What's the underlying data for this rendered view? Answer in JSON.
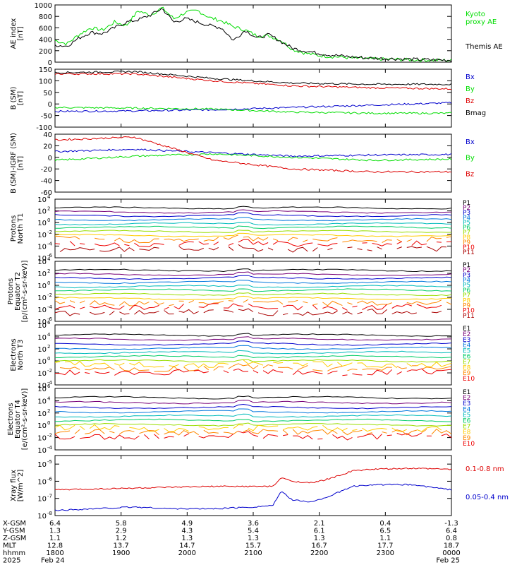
{
  "chart_data": [
    {
      "type": "line",
      "ylabel_lines": [
        "AE index",
        "[nT]"
      ],
      "ylim": [
        0,
        1000
      ],
      "yticks": [
        0,
        200,
        400,
        600,
        800,
        1000
      ],
      "yticklabels": [
        "0",
        "200",
        "400",
        "600",
        "800",
        "1000"
      ],
      "series": [
        {
          "name": "Kyoto proxy AE",
          "legend_lines": [
            "Kyoto",
            "proxy AE"
          ],
          "color": "#00dd00",
          "x": [
            0,
            0.03,
            0.06,
            0.09,
            0.12,
            0.15,
            0.18,
            0.21,
            0.24,
            0.27,
            0.3,
            0.33,
            0.36,
            0.39,
            0.42,
            0.45,
            0.48,
            0.51,
            0.54,
            0.57,
            0.6,
            0.63,
            0.66,
            0.69,
            0.72,
            0.75,
            0.8,
            0.85,
            0.9,
            0.95,
            1.0
          ],
          "y": [
            380,
            320,
            480,
            600,
            560,
            700,
            640,
            900,
            820,
            950,
            760,
            870,
            900,
            780,
            720,
            620,
            560,
            460,
            460,
            380,
            220,
            160,
            120,
            100,
            90,
            70,
            55,
            50,
            40,
            35,
            30
          ]
        },
        {
          "name": "Themis AE",
          "legend_lines": [
            "Themis AE"
          ],
          "color": "#000000",
          "x": [
            0,
            0.03,
            0.06,
            0.09,
            0.12,
            0.15,
            0.18,
            0.21,
            0.24,
            0.27,
            0.3,
            0.33,
            0.36,
            0.39,
            0.42,
            0.45,
            0.48,
            0.51,
            0.54,
            0.57,
            0.6,
            0.63,
            0.66,
            0.69,
            0.72,
            0.75,
            0.8,
            0.85,
            0.9,
            0.95,
            1.0
          ],
          "y": [
            300,
            280,
            420,
            520,
            500,
            600,
            700,
            740,
            820,
            940,
            700,
            760,
            700,
            640,
            600,
            380,
            560,
            420,
            480,
            360,
            240,
            200,
            160,
            130,
            110,
            90,
            70,
            60,
            50,
            40,
            35
          ]
        }
      ]
    },
    {
      "type": "line",
      "ylabel_lines": [
        "B (SM)",
        "[nT]"
      ],
      "ylim": [
        -100,
        150
      ],
      "yticks": [
        -100,
        -50,
        0,
        50,
        100,
        150
      ],
      "yticklabels": [
        "-100",
        "-50",
        "0",
        "50",
        "100",
        "150"
      ],
      "series": [
        {
          "name": "Bx",
          "legend_lines": [
            "Bx"
          ],
          "color": "#0000cc",
          "x": [
            0,
            0.2,
            0.4,
            0.6,
            0.8,
            1.0
          ],
          "y": [
            -32,
            -30,
            -25,
            -15,
            -5,
            5
          ]
        },
        {
          "name": "By",
          "legend_lines": [
            "By"
          ],
          "color": "#00dd00",
          "x": [
            0,
            0.2,
            0.4,
            0.6,
            0.8,
            1.0
          ],
          "y": [
            -15,
            -18,
            -22,
            -35,
            -40,
            -40
          ]
        },
        {
          "name": "Bz",
          "legend_lines": [
            "Bz"
          ],
          "color": "#dd0000",
          "x": [
            0,
            0.2,
            0.4,
            0.6,
            0.8,
            1.0
          ],
          "y": [
            130,
            130,
            100,
            78,
            70,
            65
          ]
        },
        {
          "name": "Bmag",
          "legend_lines": [
            "Bmag"
          ],
          "color": "#000000",
          "x": [
            0,
            0.2,
            0.4,
            0.6,
            0.8,
            1.0
          ],
          "y": [
            135,
            140,
            110,
            90,
            85,
            85
          ]
        }
      ]
    },
    {
      "type": "line",
      "ylabel_lines": [
        "B (SM)-IGRF (SM)",
        "[nT]"
      ],
      "ylim": [
        -60,
        40
      ],
      "yticks": [
        -60,
        -40,
        -20,
        0,
        20,
        40
      ],
      "yticklabels": [
        "-60",
        "-40",
        "-20",
        "0",
        "20",
        "40"
      ],
      "series": [
        {
          "name": "Bx",
          "legend_lines": [
            "Bx"
          ],
          "color": "#0000cc",
          "x": [
            0,
            0.2,
            0.4,
            0.6,
            0.8,
            1.0
          ],
          "y": [
            10,
            14,
            8,
            2,
            4,
            5
          ]
        },
        {
          "name": "By",
          "legend_lines": [
            "By"
          ],
          "color": "#00dd00",
          "x": [
            0,
            0.2,
            0.4,
            0.6,
            0.8,
            1.0
          ],
          "y": [
            -5,
            2,
            6,
            0,
            -5,
            -3
          ]
        },
        {
          "name": "Bz",
          "legend_lines": [
            "Bz"
          ],
          "color": "#dd0000",
          "x": [
            0,
            0.2,
            0.4,
            0.6,
            0.8,
            1.0
          ],
          "y": [
            30,
            35,
            -5,
            -20,
            -25,
            -25
          ]
        }
      ]
    },
    {
      "type": "line",
      "ylabel_lines": [
        "Protons",
        "North T1"
      ],
      "yscale": "log",
      "ylim_exp": [
        -6,
        4
      ],
      "yticks_exp": [
        -6,
        -4,
        -2,
        0,
        2,
        4
      ],
      "yticklabels": [
        "10",
        "10",
        "10",
        "10",
        "10",
        "10"
      ],
      "ytick_exponents": [
        "-6",
        "-4",
        "-2",
        "0",
        "2",
        "4"
      ],
      "channels": [
        "P1",
        "P2",
        "P3",
        "P4",
        "P5",
        "P6",
        "P7",
        "P8",
        "P9",
        "P10",
        "P11"
      ],
      "log_levels": [
        2.5,
        1.8,
        1.2,
        0.5,
        -0.2,
        -0.8,
        -1.5,
        -2.2,
        -2.9,
        -3.6,
        -4.5
      ],
      "colors": [
        "#000000",
        "#770077",
        "#0000cc",
        "#0077dd",
        "#00bbbb",
        "#00cc66",
        "#99dd00",
        "#ffcc00",
        "#ff8800",
        "#ee0000",
        "#aa0000"
      ]
    },
    {
      "type": "line",
      "ylabel_lines": [
        "Protons",
        "Equator T2",
        "[p/(cm²-s-sr-keV)]"
      ],
      "yscale": "log",
      "ylim_exp": [
        -6,
        4
      ],
      "yticks_exp": [
        -6,
        -4,
        -2,
        0,
        2,
        4
      ],
      "yticklabels": [
        "10",
        "10",
        "10",
        "10",
        "10",
        "10"
      ],
      "ytick_exponents": [
        "-6",
        "-4",
        "-2",
        "0",
        "2",
        "4"
      ],
      "channels": [
        "P1",
        "P2",
        "P3",
        "P4",
        "P5",
        "P6",
        "P7",
        "P8",
        "P9",
        "P10",
        "P11"
      ],
      "log_levels": [
        2.5,
        1.8,
        1.2,
        0.5,
        -0.2,
        -0.8,
        -1.5,
        -2.2,
        -2.9,
        -3.6,
        -4.5
      ],
      "colors": [
        "#000000",
        "#770077",
        "#0000cc",
        "#0077dd",
        "#00bbbb",
        "#00cc66",
        "#99dd00",
        "#ffcc00",
        "#ff8800",
        "#ee0000",
        "#aa0000"
      ]
    },
    {
      "type": "line",
      "ylabel_lines": [
        "Electrons",
        "North T3"
      ],
      "yscale": "log",
      "ylim_exp": [
        -4,
        6
      ],
      "yticks_exp": [
        -4,
        -2,
        0,
        2,
        4,
        6
      ],
      "yticklabels": [
        "10",
        "10",
        "10",
        "10",
        "10",
        "10"
      ],
      "ytick_exponents": [
        "-4",
        "-2",
        "0",
        "2",
        "4",
        "6"
      ],
      "channels": [
        "E1",
        "E2",
        "E3",
        "E4",
        "E5",
        "E6",
        "E7",
        "E8",
        "E9",
        "E10"
      ],
      "log_levels": [
        4.3,
        3.6,
        2.8,
        2.1,
        1.4,
        0.7,
        0.0,
        -0.6,
        -1.2,
        -1.9
      ],
      "colors": [
        "#000000",
        "#770077",
        "#0000cc",
        "#0077dd",
        "#00bbbb",
        "#00cc66",
        "#99dd00",
        "#ffcc00",
        "#ff8800",
        "#ee0000"
      ]
    },
    {
      "type": "line",
      "ylabel_lines": [
        "Electrons",
        "Equator T4",
        "[e/(cm²-s-sr-keV)]"
      ],
      "yscale": "log",
      "ylim_exp": [
        -4,
        6
      ],
      "yticks_exp": [
        -4,
        -2,
        0,
        2,
        4,
        6
      ],
      "yticklabels": [
        "10",
        "10",
        "10",
        "10",
        "10",
        "10"
      ],
      "ytick_exponents": [
        "-4",
        "-2",
        "0",
        "2",
        "4",
        "6"
      ],
      "channels": [
        "E1",
        "E2",
        "E3",
        "E4",
        "E5",
        "E6",
        "E7",
        "E8",
        "E9",
        "E10"
      ],
      "log_levels": [
        4.5,
        3.7,
        2.9,
        2.2,
        1.5,
        0.8,
        0.1,
        -0.5,
        -1.1,
        -1.8
      ],
      "colors": [
        "#000000",
        "#770077",
        "#0000cc",
        "#0077dd",
        "#00bbbb",
        "#00cc66",
        "#99dd00",
        "#ffcc00",
        "#ff8800",
        "#ee0000"
      ]
    },
    {
      "type": "line",
      "ylabel_lines": [
        "Xray flux",
        "[W/m^2]"
      ],
      "yscale": "log",
      "ylim_exp": [
        -8,
        -4.5
      ],
      "yticks_exp": [
        -8,
        -7,
        -6,
        -5
      ],
      "yticklabels": [
        "10",
        "10",
        "10",
        "10"
      ],
      "ytick_exponents": [
        "-8",
        "-7",
        "-6",
        "-5"
      ],
      "series": [
        {
          "name": "0.1-0.8 nm",
          "legend_lines": [
            "0.1-0.8 nm"
          ],
          "color": "#dd0000",
          "x": [
            0,
            0.1,
            0.2,
            0.3,
            0.4,
            0.5,
            0.55,
            0.57,
            0.6,
            0.65,
            0.7,
            0.75,
            0.8,
            0.9,
            1.0
          ],
          "y_exp": [
            -6.5,
            -6.45,
            -6.4,
            -6.35,
            -6.3,
            -6.3,
            -6.3,
            -5.8,
            -6.0,
            -6.1,
            -5.8,
            -5.4,
            -5.3,
            -5.25,
            -5.3
          ]
        },
        {
          "name": "0.05-0.4 nm",
          "legend_lines": [
            "0.05-0.4 nm"
          ],
          "color": "#0000cc",
          "x": [
            0,
            0.1,
            0.2,
            0.3,
            0.4,
            0.5,
            0.55,
            0.57,
            0.6,
            0.65,
            0.7,
            0.75,
            0.8,
            0.9,
            1.0
          ],
          "y_exp": [
            -7.7,
            -7.6,
            -7.5,
            -7.6,
            -7.6,
            -7.5,
            -7.4,
            -6.6,
            -7.1,
            -7.2,
            -6.8,
            -6.3,
            -6.2,
            -6.2,
            -6.5
          ]
        }
      ]
    }
  ],
  "orbit_table": {
    "row_labels": [
      "X-GSM",
      "Y-GSM",
      "Z-GSM",
      "MLT",
      "hhmm",
      "2025"
    ],
    "columns": [
      {
        "values": [
          "6.4",
          "1.3",
          "1.1",
          "12.8",
          "1800",
          "Feb 24"
        ]
      },
      {
        "values": [
          "5.8",
          "2.9",
          "1.2",
          "13.7",
          "1900",
          ""
        ]
      },
      {
        "values": [
          "4.9",
          "4.3",
          "1.3",
          "14.7",
          "2000",
          ""
        ]
      },
      {
        "values": [
          "3.6",
          "5.4",
          "1.3",
          "15.7",
          "2100",
          ""
        ]
      },
      {
        "values": [
          "2.1",
          "6.1",
          "1.3",
          "16.7",
          "2200",
          ""
        ]
      },
      {
        "values": [
          "0.4",
          "6.5",
          "1.1",
          "17.7",
          "2300",
          ""
        ]
      },
      {
        "values": [
          "-1.3",
          "6.4",
          "0.8",
          "18.7",
          "0000",
          "Feb 25"
        ]
      }
    ]
  }
}
